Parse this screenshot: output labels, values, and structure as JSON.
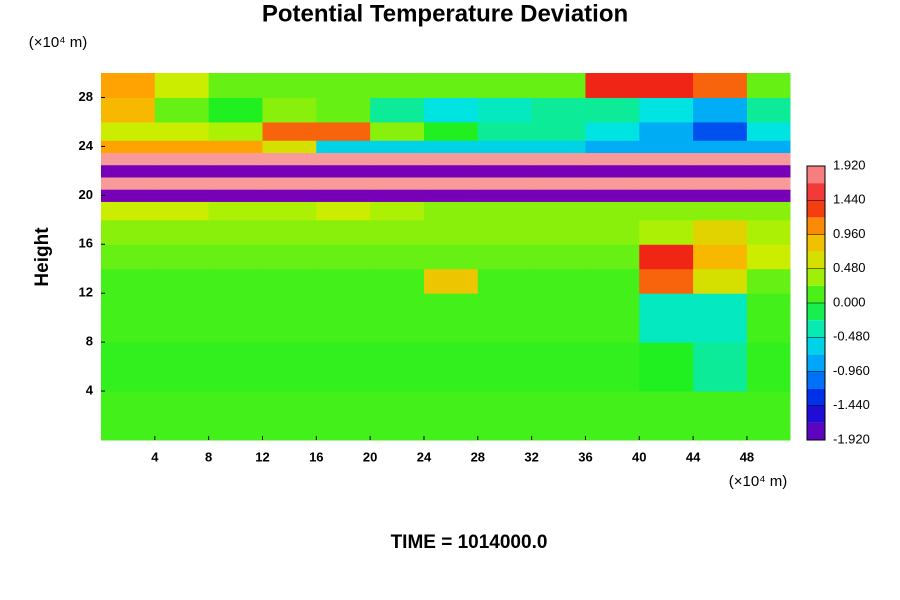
{
  "chart_data": {
    "type": "heatmap",
    "title": "Potential Temperature Deviation",
    "ylabel": "Height",
    "x_unit": "(×10⁴ m)",
    "y_unit": "(×10⁴ m)",
    "footer": "TIME = 1014000.0",
    "xlim": [
      0,
      51.2
    ],
    "ylim": [
      0,
      30
    ],
    "xticks": [
      4,
      8,
      12,
      16,
      20,
      24,
      28,
      32,
      36,
      40,
      44,
      48
    ],
    "yticks": [
      4,
      8,
      12,
      16,
      20,
      24,
      28
    ],
    "x_edges": [
      0,
      4,
      8,
      12,
      16,
      20,
      24,
      28,
      32,
      36,
      40,
      44,
      48,
      51.2
    ],
    "y_edges": [
      0,
      4,
      8,
      12,
      14,
      16,
      18,
      19.5,
      20.5,
      21.5,
      22.5,
      23.5,
      24.5,
      26,
      28,
      30
    ],
    "z": [
      [
        0.1,
        0.1,
        0.1,
        0.1,
        0.1,
        0.1,
        0.1,
        0.1,
        0.1,
        0.1,
        0.1,
        0.1,
        0.1
      ],
      [
        0.05,
        0.05,
        0.05,
        0.05,
        0.05,
        0.05,
        0.05,
        0.05,
        0.05,
        0.05,
        0.0,
        -0.3,
        0.05
      ],
      [
        0.1,
        0.1,
        0.1,
        0.1,
        0.1,
        0.1,
        0.1,
        0.1,
        0.1,
        0.1,
        -0.4,
        -0.4,
        0.1
      ],
      [
        0.1,
        0.1,
        0.1,
        0.1,
        0.1,
        0.1,
        0.8,
        0.1,
        0.1,
        0.1,
        1.2,
        0.6,
        0.2
      ],
      [
        0.2,
        0.2,
        0.2,
        0.2,
        0.2,
        0.2,
        0.2,
        0.2,
        0.2,
        0.2,
        1.4,
        0.9,
        0.5
      ],
      [
        0.3,
        0.3,
        0.3,
        0.3,
        0.3,
        0.3,
        0.3,
        0.3,
        0.3,
        0.3,
        0.4,
        0.7,
        0.4
      ],
      [
        0.5,
        0.5,
        0.4,
        0.4,
        0.5,
        0.4,
        0.3,
        0.3,
        0.3,
        0.3,
        0.3,
        0.3,
        0.3
      ],
      [
        -1.9,
        -1.9,
        -1.9,
        -1.9,
        -1.9,
        -1.9,
        -1.9,
        -1.9,
        -1.9,
        -1.9,
        -1.9,
        -1.9,
        -1.9
      ],
      [
        1.9,
        1.9,
        1.9,
        1.9,
        1.9,
        1.9,
        1.9,
        1.9,
        1.9,
        1.9,
        1.9,
        1.9,
        1.9
      ],
      [
        -1.9,
        -1.9,
        -1.9,
        -1.9,
        -1.9,
        -1.9,
        -1.9,
        -1.9,
        -1.9,
        -1.9,
        -1.9,
        -1.9,
        -1.9
      ],
      [
        1.9,
        1.9,
        1.9,
        1.9,
        1.9,
        1.9,
        1.9,
        1.9,
        1.9,
        1.9,
        1.9,
        1.9,
        1.9
      ],
      [
        1.0,
        1.0,
        1.0,
        0.6,
        -0.6,
        -0.6,
        -0.6,
        -0.6,
        -0.6,
        -0.8,
        -0.8,
        -0.8,
        -0.8
      ],
      [
        0.5,
        0.5,
        0.4,
        1.2,
        1.2,
        0.3,
        0.0,
        -0.3,
        -0.3,
        -0.5,
        -0.8,
        -1.2,
        -0.5
      ],
      [
        0.9,
        0.2,
        0.0,
        0.3,
        0.2,
        -0.3,
        -0.5,
        -0.4,
        -0.3,
        -0.3,
        -0.5,
        -0.8,
        -0.3
      ],
      [
        1.0,
        0.5,
        0.2,
        0.2,
        0.2,
        0.2,
        0.2,
        0.2,
        0.2,
        1.4,
        1.4,
        1.2,
        0.2
      ]
    ],
    "zlim": [
      -1.92,
      1.92
    ],
    "colorscale": [
      "#7b00b5",
      "#0010e0",
      "#0090ff",
      "#00e8e0",
      "#20f020",
      "#c8f000",
      "#ffb000",
      "#f01818",
      "#f8a0a0"
    ],
    "cticks": [
      {
        "value": 1.92,
        "label": "1.920"
      },
      {
        "value": 1.44,
        "label": "1.440"
      },
      {
        "value": 0.96,
        "label": "0.960"
      },
      {
        "value": 0.48,
        "label": "0.480"
      },
      {
        "value": 0,
        "label": "0.000"
      },
      {
        "value": -0.48,
        "label": "-0.480"
      },
      {
        "value": -0.96,
        "label": "-0.960"
      },
      {
        "value": -1.44,
        "label": "-1.440"
      },
      {
        "value": -1.92,
        "label": "-1.920"
      }
    ]
  }
}
